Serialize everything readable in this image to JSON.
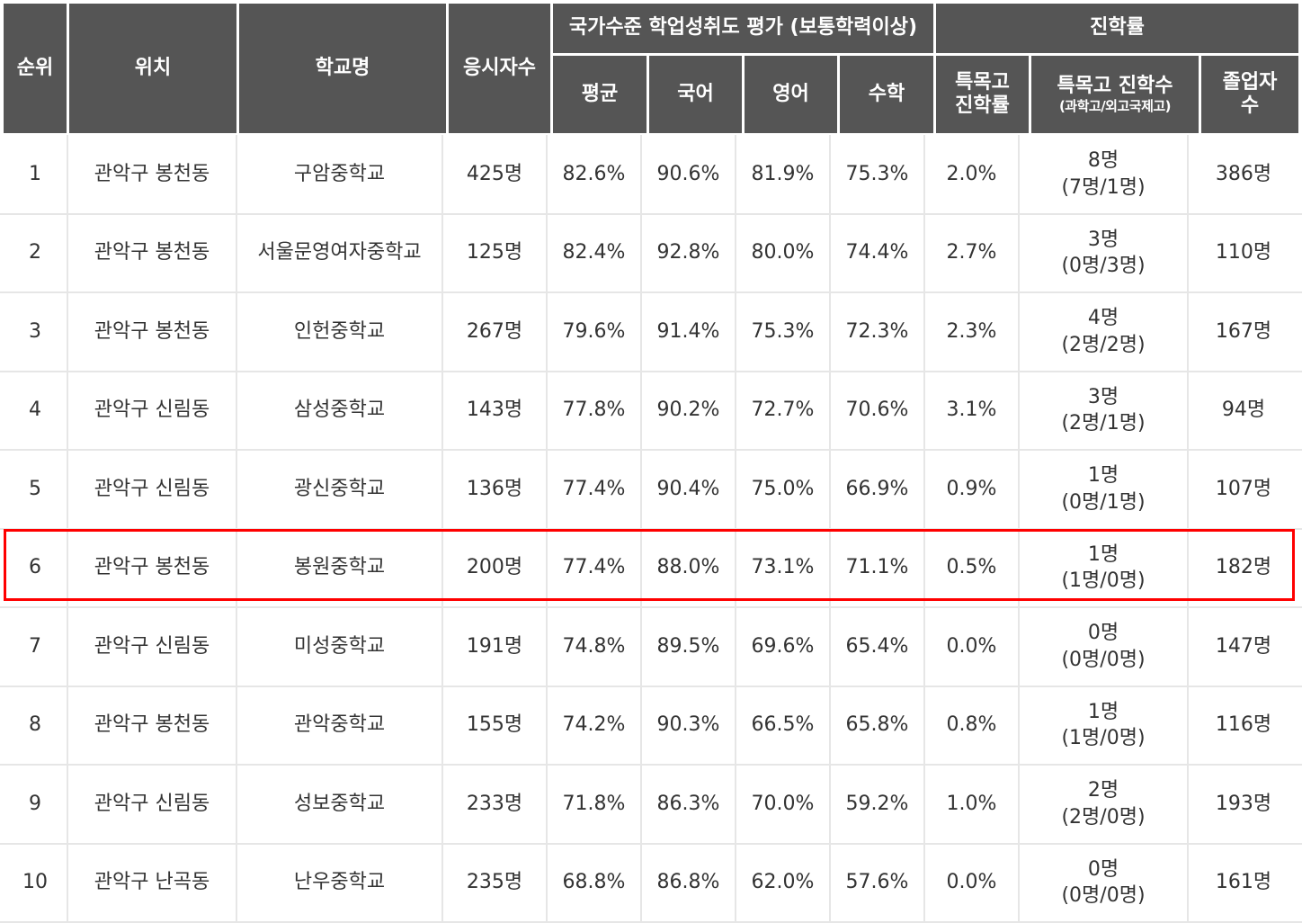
{
  "headers": {
    "rank": "순위",
    "location": "위치",
    "school": "학교명",
    "examinees": "응시자수",
    "assessment_group": "국가수준 학업성취도 평가 (보통학력이상)",
    "avg": "평균",
    "korean": "국어",
    "english": "영어",
    "math": "수학",
    "advancement_group": "진학률",
    "special_rate_line1": "특목고",
    "special_rate_line2": "진학률",
    "special_count": "특목고 진학수",
    "special_count_sub": "(과학고/외고국제고)",
    "graduates_line1": "졸업자",
    "graduates_line2": "수"
  },
  "rows": [
    {
      "rank": "1",
      "location": "관악구 봉천동",
      "school": "구암중학교",
      "examinees": "425명",
      "avg": "82.6%",
      "korean": "90.6%",
      "english": "81.9%",
      "math": "75.3%",
      "special_rate": "2.0%",
      "special_count": "8명",
      "special_detail": "(7명/1명)",
      "graduates": "386명"
    },
    {
      "rank": "2",
      "location": "관악구 봉천동",
      "school": "서울문영여자중학교",
      "examinees": "125명",
      "avg": "82.4%",
      "korean": "92.8%",
      "english": "80.0%",
      "math": "74.4%",
      "special_rate": "2.7%",
      "special_count": "3명",
      "special_detail": "(0명/3명)",
      "graduates": "110명"
    },
    {
      "rank": "3",
      "location": "관악구 봉천동",
      "school": "인헌중학교",
      "examinees": "267명",
      "avg": "79.6%",
      "korean": "91.4%",
      "english": "75.3%",
      "math": "72.3%",
      "special_rate": "2.3%",
      "special_count": "4명",
      "special_detail": "(2명/2명)",
      "graduates": "167명"
    },
    {
      "rank": "4",
      "location": "관악구 신림동",
      "school": "삼성중학교",
      "examinees": "143명",
      "avg": "77.8%",
      "korean": "90.2%",
      "english": "72.7%",
      "math": "70.6%",
      "special_rate": "3.1%",
      "special_count": "3명",
      "special_detail": "(2명/1명)",
      "graduates": "94명"
    },
    {
      "rank": "5",
      "location": "관악구 신림동",
      "school": "광신중학교",
      "examinees": "136명",
      "avg": "77.4%",
      "korean": "90.4%",
      "english": "75.0%",
      "math": "66.9%",
      "special_rate": "0.9%",
      "special_count": "1명",
      "special_detail": "(0명/1명)",
      "graduates": "107명"
    },
    {
      "rank": "6",
      "location": "관악구 봉천동",
      "school": "봉원중학교",
      "examinees": "200명",
      "avg": "77.4%",
      "korean": "88.0%",
      "english": "73.1%",
      "math": "71.1%",
      "special_rate": "0.5%",
      "special_count": "1명",
      "special_detail": "(1명/0명)",
      "graduates": "182명"
    },
    {
      "rank": "7",
      "location": "관악구 신림동",
      "school": "미성중학교",
      "examinees": "191명",
      "avg": "74.8%",
      "korean": "89.5%",
      "english": "69.6%",
      "math": "65.4%",
      "special_rate": "0.0%",
      "special_count": "0명",
      "special_detail": "(0명/0명)",
      "graduates": "147명"
    },
    {
      "rank": "8",
      "location": "관악구 봉천동",
      "school": "관악중학교",
      "examinees": "155명",
      "avg": "74.2%",
      "korean": "90.3%",
      "english": "66.5%",
      "math": "65.8%",
      "special_rate": "0.8%",
      "special_count": "1명",
      "special_detail": "(1명/0명)",
      "graduates": "116명"
    },
    {
      "rank": "9",
      "location": "관악구 신림동",
      "school": "성보중학교",
      "examinees": "233명",
      "avg": "71.8%",
      "korean": "86.3%",
      "english": "70.0%",
      "math": "59.2%",
      "special_rate": "1.0%",
      "special_count": "2명",
      "special_detail": "(2명/0명)",
      "graduates": "193명"
    },
    {
      "rank": "10",
      "location": "관악구 난곡동",
      "school": "난우중학교",
      "examinees": "235명",
      "avg": "68.8%",
      "korean": "86.8%",
      "english": "62.0%",
      "math": "57.6%",
      "special_rate": "0.0%",
      "special_count": "0명",
      "special_detail": "(0명/0명)",
      "graduates": "161명"
    }
  ],
  "highlighted_rank": "6",
  "colors": {
    "header_bg": "#555555",
    "highlight_border": "#ff0000"
  }
}
